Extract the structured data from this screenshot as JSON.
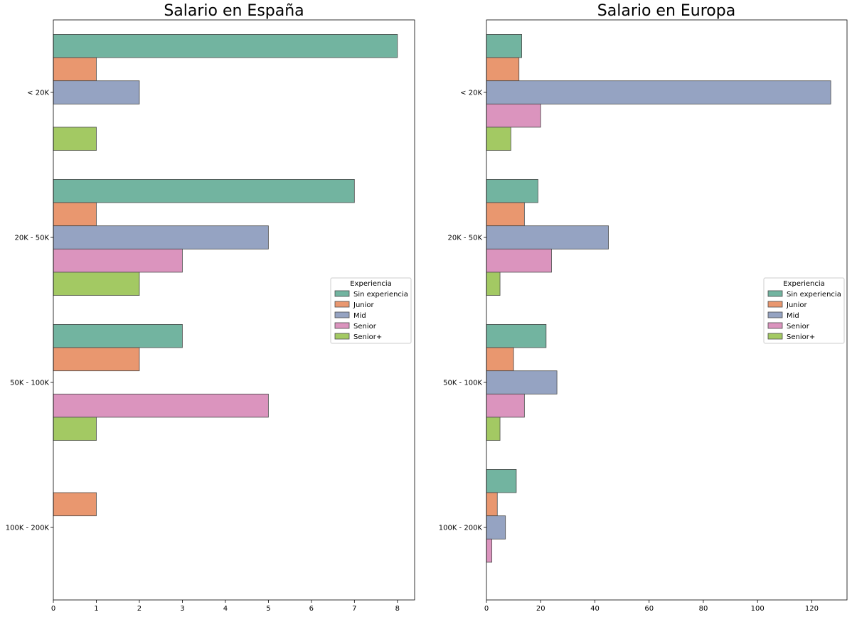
{
  "chart_data": [
    {
      "type": "bar",
      "orientation": "horizontal",
      "title": "Salario en España",
      "xlabel": "",
      "ylabel": "",
      "categories": [
        "< 20K",
        "20K - 50K",
        "50K - 100K",
        "100K - 200K"
      ],
      "xlim": [
        0,
        8.4
      ],
      "xticks": [
        "0",
        "1",
        "2",
        "3",
        "4",
        "5",
        "6",
        "7",
        "8"
      ],
      "grid": false,
      "legend": {
        "title": "Experiencia",
        "position": "center-right"
      },
      "series": [
        {
          "name": "Sin experiencia",
          "color": "#72b4a0",
          "values": [
            8,
            7,
            3,
            0
          ]
        },
        {
          "name": "Junior",
          "color": "#e9976f",
          "values": [
            1,
            1,
            2,
            1
          ]
        },
        {
          "name": "Mid",
          "color": "#95a3c2",
          "values": [
            2,
            5,
            0,
            0
          ]
        },
        {
          "name": "Senior",
          "color": "#db94be",
          "values": [
            0,
            3,
            5,
            0
          ]
        },
        {
          "name": "Senior+",
          "color": "#a3c963",
          "values": [
            1,
            2,
            1,
            0
          ]
        }
      ]
    },
    {
      "type": "bar",
      "orientation": "horizontal",
      "title": "Salario en Europa",
      "xlabel": "",
      "ylabel": "",
      "categories": [
        "< 20K",
        "20K - 50K",
        "50K - 100K",
        "100K - 200K"
      ],
      "xlim": [
        0,
        133
      ],
      "xticks": [
        "0",
        "20",
        "40",
        "60",
        "80",
        "100",
        "120"
      ],
      "grid": false,
      "legend": {
        "title": "Experiencia",
        "position": "center-right"
      },
      "series": [
        {
          "name": "Sin experiencia",
          "color": "#72b4a0",
          "values": [
            13,
            19,
            22,
            11
          ]
        },
        {
          "name": "Junior",
          "color": "#e9976f",
          "values": [
            12,
            14,
            10,
            4
          ]
        },
        {
          "name": "Mid",
          "color": "#95a3c2",
          "values": [
            127,
            45,
            26,
            7
          ]
        },
        {
          "name": "Senior",
          "color": "#db94be",
          "values": [
            20,
            24,
            14,
            2
          ]
        },
        {
          "name": "Senior+",
          "color": "#a3c963",
          "values": [
            9,
            5,
            5,
            0
          ]
        }
      ]
    }
  ]
}
